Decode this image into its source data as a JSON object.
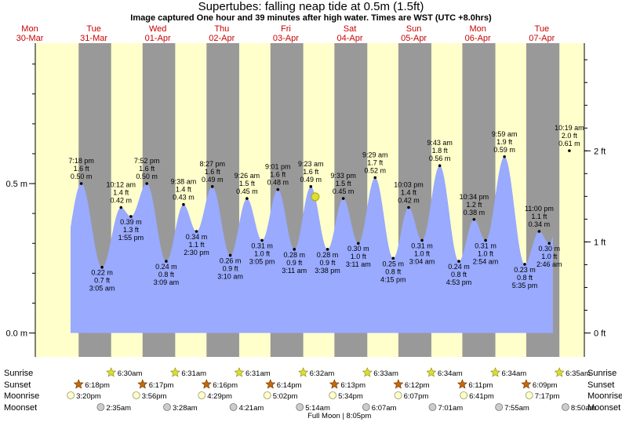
{
  "title": "Supertubes: falling  neap tide at 0.5m (1.5ft)",
  "subtitle": "Image captured One hour and 39 minutes after high water. Times are WST (UTC +8.0hrs)",
  "colors": {
    "day": "#ffffcc",
    "night": "#999999",
    "tide": "#99aaff",
    "axis": "#000000",
    "label": "#cc0000"
  },
  "chart_data": {
    "type": "area",
    "x_unit": "hours from Mon 30-Mar 00:00 WST",
    "ylim_m": [
      -0.08,
      0.97
    ],
    "y_left_ticks": [
      {
        "v": 0.0,
        "label": "0.0 m"
      },
      {
        "v": 0.5,
        "label": "0.5 m"
      }
    ],
    "y_right_ticks": [
      {
        "v": 0.0,
        "label": "0 ft"
      },
      {
        "v": 0.3048,
        "label": "1 ft"
      },
      {
        "v": 0.6096,
        "label": "2 ft"
      }
    ],
    "days": [
      {
        "dow": "Mon",
        "date": "30-Mar"
      },
      {
        "dow": "Tue",
        "date": "31-Mar"
      },
      {
        "dow": "Wed",
        "date": "01-Apr"
      },
      {
        "dow": "Thu",
        "date": "02-Apr"
      },
      {
        "dow": "Fri",
        "date": "03-Apr"
      },
      {
        "dow": "Sat",
        "date": "04-Apr"
      },
      {
        "dow": "Sun",
        "date": "05-Apr"
      },
      {
        "dow": "Mon",
        "date": "06-Apr"
      },
      {
        "dow": "Tue",
        "date": "07-Apr"
      }
    ],
    "extremes": [
      {
        "h": 19.3,
        "m": 0.5,
        "type": "high",
        "lines": [
          "7:18 pm",
          "1.6 ft",
          "0.50 m"
        ]
      },
      {
        "h": 27.08,
        "m": 0.22,
        "type": "low",
        "lines": [
          "0.22 m",
          "0.7 ft",
          "3:05 am"
        ]
      },
      {
        "h": 34.2,
        "m": 0.42,
        "type": "high",
        "lines": [
          "10:12 am",
          "1.4 ft",
          "0.42 m"
        ]
      },
      {
        "h": 37.92,
        "m": 0.39,
        "type": "low",
        "lines": [
          "0.39 m",
          "1.3 ft",
          "1:55 pm"
        ]
      },
      {
        "h": 43.87,
        "m": 0.5,
        "type": "high",
        "lines": [
          "7:52 pm",
          "1.6 ft",
          "0.50 m"
        ]
      },
      {
        "h": 51.15,
        "m": 0.24,
        "type": "low",
        "lines": [
          "0.24 m",
          "0.8 ft",
          "3:09 am"
        ]
      },
      {
        "h": 57.63,
        "m": 0.43,
        "type": "high",
        "lines": [
          "9:38 am",
          "1.4 ft",
          "0.43 m"
        ]
      },
      {
        "h": 62.5,
        "m": 0.34,
        "type": "low",
        "lines": [
          "0.34 m",
          "1.1 ft",
          "2:30 pm"
        ]
      },
      {
        "h": 68.45,
        "m": 0.49,
        "type": "high",
        "lines": [
          "8:27 pm",
          "1.6 ft",
          "0.49 m"
        ]
      },
      {
        "h": 75.17,
        "m": 0.26,
        "type": "low",
        "lines": [
          "0.26 m",
          "0.9 ft",
          "3:10 am"
        ]
      },
      {
        "h": 81.43,
        "m": 0.45,
        "type": "high",
        "lines": [
          "9:26 am",
          "1.5 ft",
          "0.45 m"
        ]
      },
      {
        "h": 87.08,
        "m": 0.31,
        "type": "low",
        "lines": [
          "0.31 m",
          "1.0 ft",
          "3:05 pm"
        ]
      },
      {
        "h": 93.02,
        "m": 0.48,
        "type": "high",
        "lines": [
          "9:01 pm",
          "1.6 ft",
          "0.48 m"
        ]
      },
      {
        "h": 99.18,
        "m": 0.28,
        "type": "low",
        "lines": [
          "0.28 m",
          "0.9 ft",
          "3:11 am"
        ]
      },
      {
        "h": 105.38,
        "m": 0.49,
        "type": "high",
        "lines": [
          "9:23 am",
          "1.6 ft",
          "0.49 m"
        ]
      },
      {
        "h": 111.63,
        "m": 0.28,
        "type": "low",
        "lines": [
          "0.28 m",
          "0.9 ft",
          "3:38 pm"
        ]
      },
      {
        "h": 117.55,
        "m": 0.45,
        "type": "high",
        "lines": [
          "9:33 pm",
          "1.5 ft",
          "0.45 m"
        ]
      },
      {
        "h": 123.18,
        "m": 0.3,
        "type": "low",
        "lines": [
          "0.30 m",
          "1.0 ft",
          "3:11 am"
        ]
      },
      {
        "h": 129.48,
        "m": 0.52,
        "type": "high",
        "lines": [
          "9:29 am",
          "1.7 ft",
          "0.52 m"
        ]
      },
      {
        "h": 136.25,
        "m": 0.25,
        "type": "low",
        "lines": [
          "0.25 m",
          "0.8 ft",
          "4:15 pm"
        ]
      },
      {
        "h": 142.05,
        "m": 0.42,
        "type": "high",
        "lines": [
          "10:03 pm",
          "1.4 ft",
          "0.42 m"
        ]
      },
      {
        "h": 147.07,
        "m": 0.31,
        "type": "low",
        "lines": [
          "0.31 m",
          "1.0 ft",
          "3:04 am"
        ]
      },
      {
        "h": 153.72,
        "m": 0.56,
        "type": "high",
        "lines": [
          "9:43 am",
          "1.8 ft",
          "0.56 m"
        ]
      },
      {
        "h": 160.88,
        "m": 0.24,
        "type": "low",
        "lines": [
          "0.24 m",
          "0.8 ft",
          "4:53 pm"
        ]
      },
      {
        "h": 166.57,
        "m": 0.38,
        "type": "high",
        "lines": [
          "10:34 pm",
          "1.2 ft",
          "0.38 m"
        ]
      },
      {
        "h": 170.9,
        "m": 0.31,
        "type": "low",
        "lines": [
          "0.31 m",
          "1.0 ft",
          "2:54 am"
        ]
      },
      {
        "h": 177.98,
        "m": 0.59,
        "type": "high",
        "lines": [
          "9:59 am",
          "1.9 ft",
          "0.59 m"
        ]
      },
      {
        "h": 185.58,
        "m": 0.23,
        "type": "low",
        "lines": [
          "0.23 m",
          "0.8 ft",
          "5:35 pm"
        ]
      },
      {
        "h": 191.0,
        "m": 0.34,
        "type": "high",
        "lines": [
          "11:00 pm",
          "1.1 ft",
          "0.34 m"
        ]
      },
      {
        "h": 194.77,
        "m": 0.3,
        "type": "low",
        "lines": [
          "0.30 m",
          "1.0 ft",
          "2:46 am"
        ]
      },
      {
        "h": 202.32,
        "m": 0.61,
        "type": "high",
        "lines": [
          "10:19 am",
          "2.0 ft",
          "0.61 m"
        ]
      }
    ],
    "sunrise": [
      "6:30am",
      "6:31am",
      "6:31am",
      "6:32am",
      "6:33am",
      "6:34am",
      "6:34am",
      "6:35am"
    ],
    "sunset": [
      "6:18pm",
      "6:17pm",
      "6:16pm",
      "6:14pm",
      "6:13pm",
      "6:12pm",
      "6:11pm",
      "6:09pm"
    ],
    "moonrise": [
      "3:20pm",
      "3:56pm",
      "4:29pm",
      "5:02pm",
      "5:34pm",
      "6:07pm",
      "6:41pm",
      "7:17pm"
    ],
    "moonset": [
      "2:35am",
      "3:28am",
      "4:21am",
      "5:14am",
      "6:07am",
      "7:01am",
      "7:55am",
      "8:50am"
    ],
    "row_labels": [
      "Sunrise",
      "Sunset",
      "Moonrise",
      "Moonset"
    ],
    "full_moon": "Full Moon | 8:05pm"
  }
}
